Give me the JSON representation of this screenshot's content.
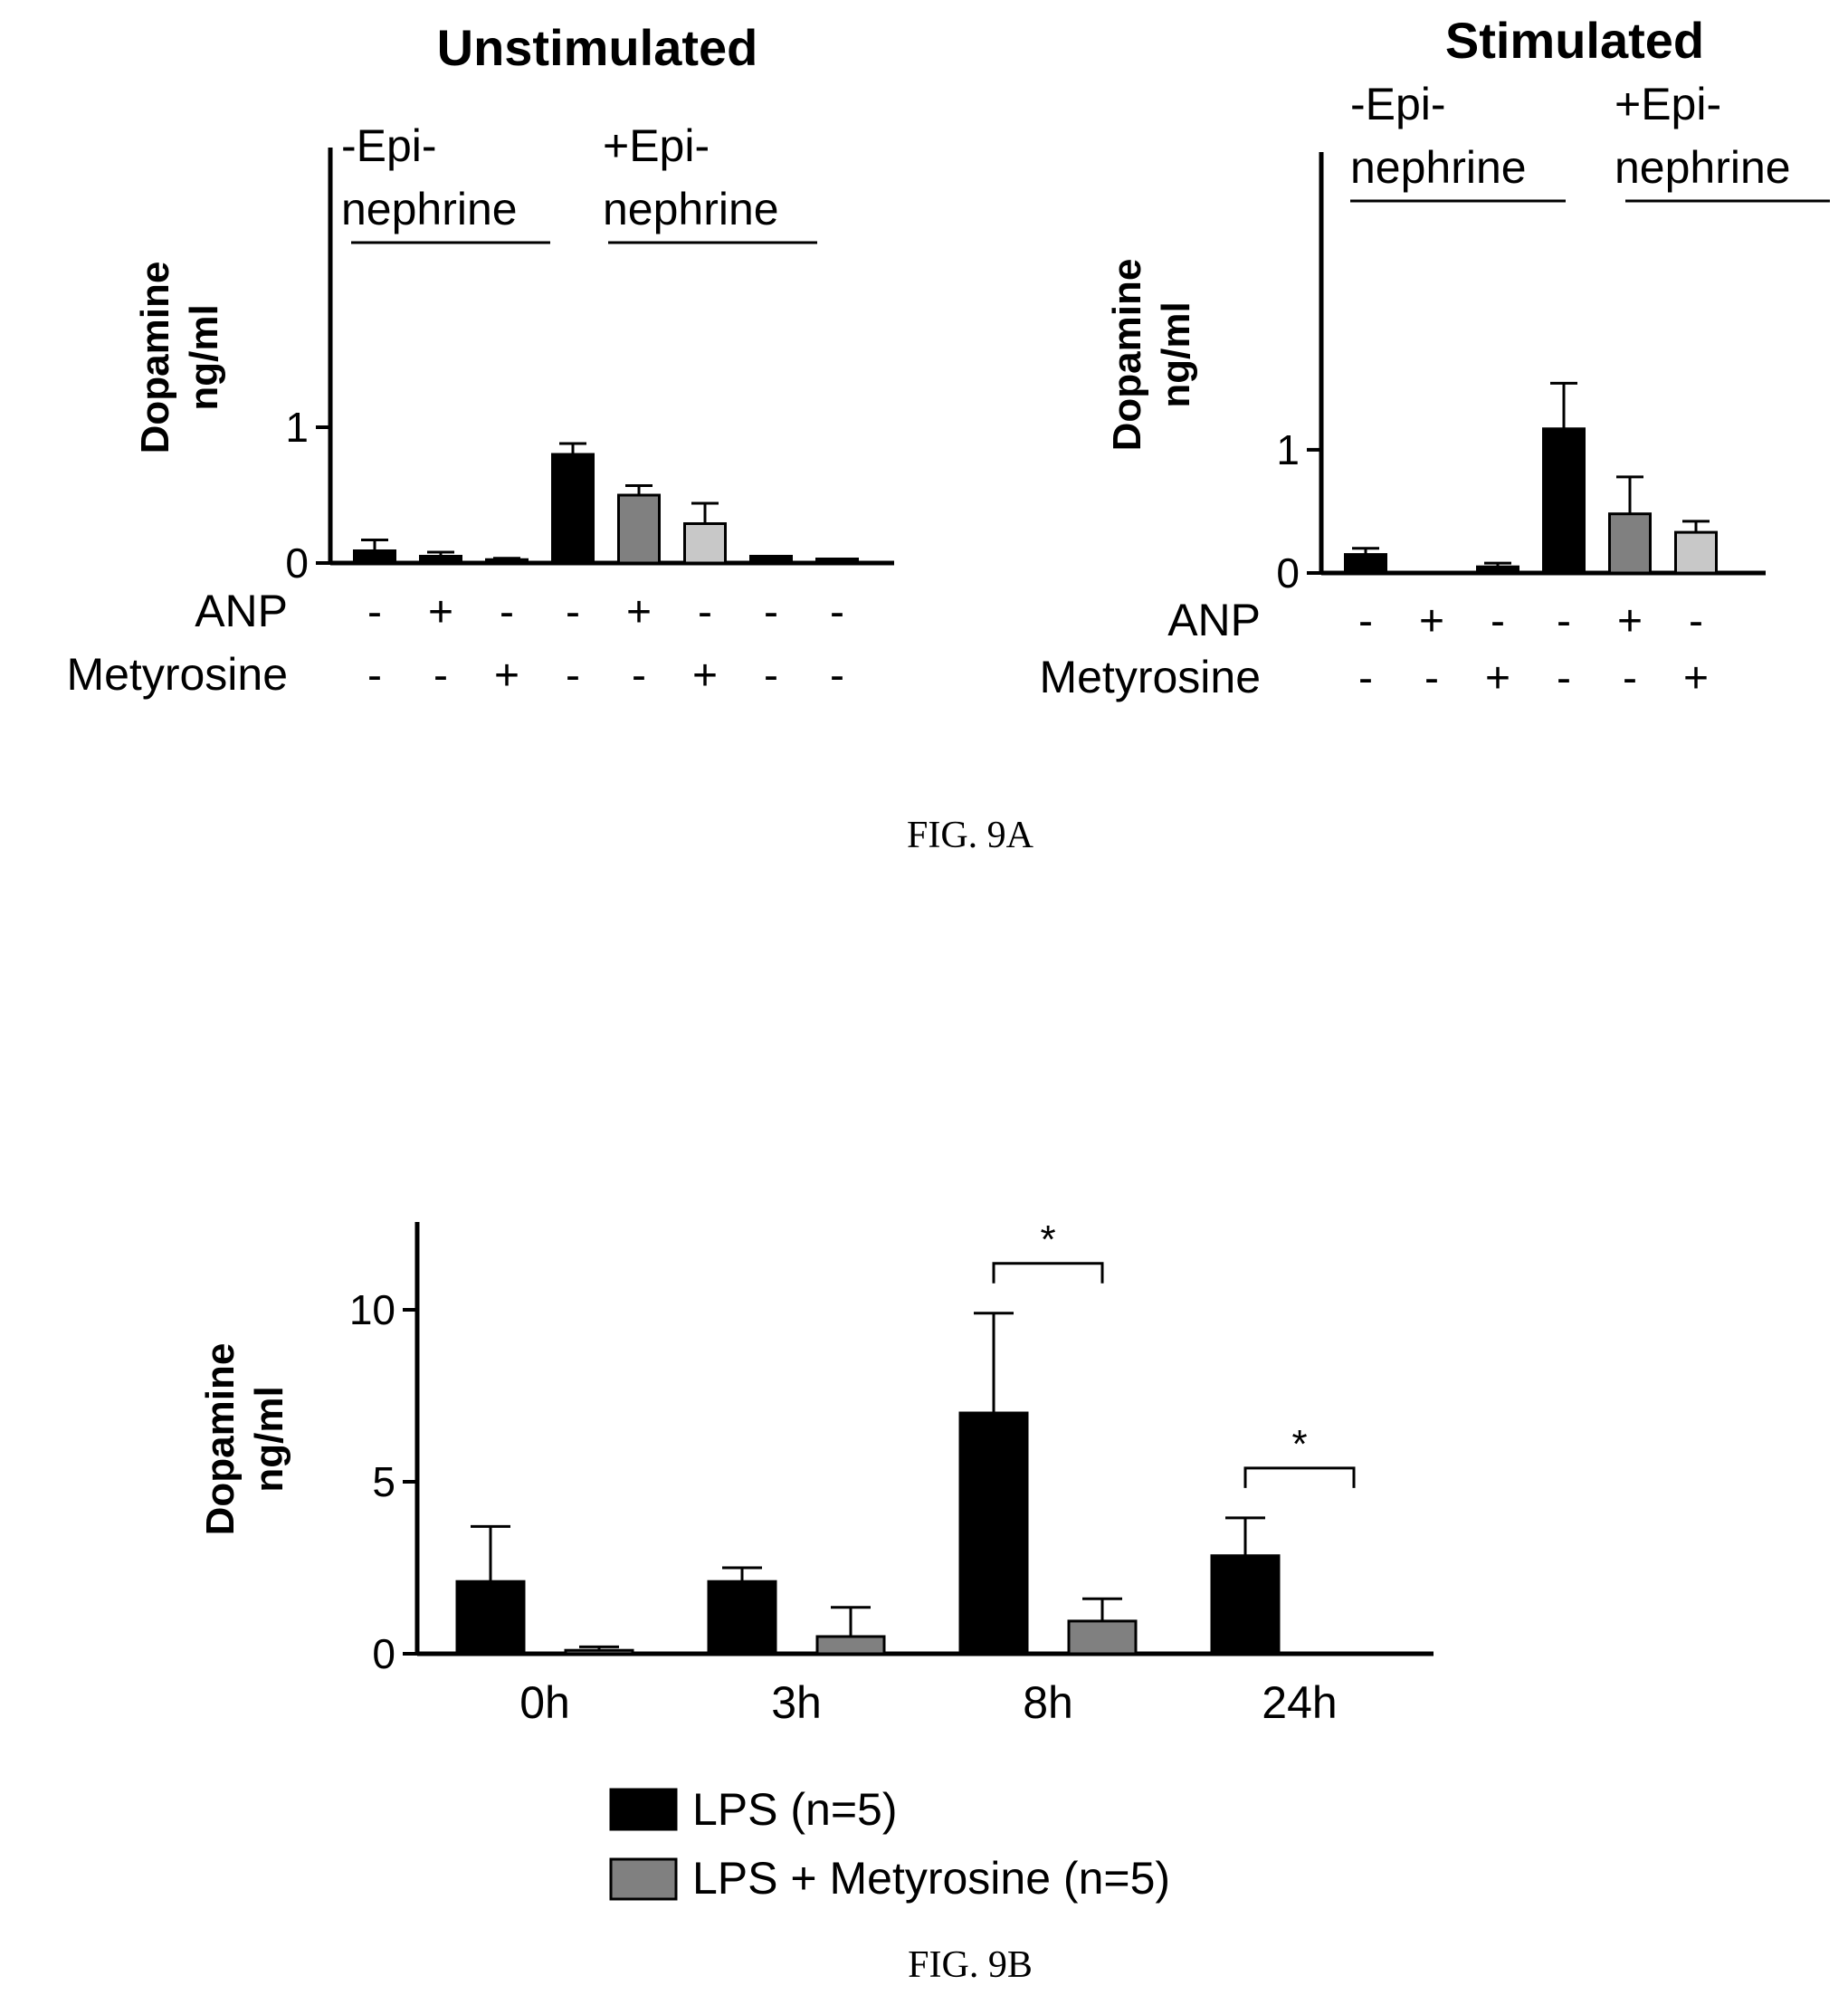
{
  "figure_a_caption": "FIG. 9A",
  "figure_b_caption": "FIG. 9B",
  "colors": {
    "black": "#000000",
    "dark_gray": "#808080",
    "light_gray": "#c8c8c8"
  },
  "chart_data": [
    {
      "type": "bar",
      "title": "Unstimulated",
      "ylabel": "Dopamine ng/ml",
      "ylabel_lines": [
        "Dopamine",
        "ng/ml"
      ],
      "ylim": [
        0,
        1.7
      ],
      "yticks": [
        0,
        1
      ],
      "row_labels": [
        "ANP",
        "Metyrosine"
      ],
      "groups": [
        {
          "label_lines": [
            "-Epi-",
            "nephrine"
          ]
        },
        {
          "label_lines": [
            "+Epi-",
            "nephrine"
          ]
        }
      ],
      "bars": [
        {
          "value": 0.09,
          "error": 0.08,
          "fill": "black",
          "anp": "-",
          "metyrosine": "-"
        },
        {
          "value": 0.05,
          "error": 0.03,
          "fill": "black",
          "anp": "+",
          "metyrosine": "-"
        },
        {
          "value": 0.025,
          "error": 0.01,
          "fill": "black",
          "anp": "-",
          "metyrosine": "+"
        },
        {
          "value": 0.8,
          "error": 0.08,
          "fill": "black",
          "anp": "-",
          "metyrosine": "-"
        },
        {
          "value": 0.5,
          "error": 0.07,
          "fill": "dark_gray",
          "anp": "+",
          "metyrosine": "-"
        },
        {
          "value": 0.29,
          "error": 0.15,
          "fill": "light_gray",
          "anp": "-",
          "metyrosine": "+"
        },
        {
          "value": 0.05,
          "error": 0.0,
          "fill": "black",
          "anp": "-",
          "metyrosine": "-"
        },
        {
          "value": 0.03,
          "error": 0.0,
          "fill": "black",
          "anp": "-",
          "metyrosine": "-"
        }
      ]
    },
    {
      "type": "bar",
      "title": "Stimulated",
      "ylabel": "Dopamine ng/ml",
      "ylabel_lines": [
        "Dopamine",
        "ng/ml"
      ],
      "ylim": [
        0,
        1.8
      ],
      "yticks": [
        0,
        1
      ],
      "row_labels": [
        "ANP",
        "Metyrosine"
      ],
      "groups": [
        {
          "label_lines": [
            "-Epi-",
            "nephrine"
          ]
        },
        {
          "label_lines": [
            "+Epi-",
            "nephrine"
          ]
        }
      ],
      "bars": [
        {
          "value": 0.15,
          "error": 0.05,
          "fill": "black",
          "anp": "-",
          "metyrosine": "-"
        },
        {
          "value": 0.0,
          "error": 0.0,
          "fill": "black",
          "anp": "+",
          "metyrosine": "-"
        },
        {
          "value": 0.05,
          "error": 0.03,
          "fill": "black",
          "anp": "-",
          "metyrosine": "+"
        },
        {
          "value": 1.17,
          "error": 0.37,
          "fill": "black",
          "anp": "-",
          "metyrosine": "-"
        },
        {
          "value": 0.48,
          "error": 0.3,
          "fill": "dark_gray",
          "anp": "+",
          "metyrosine": "-"
        },
        {
          "value": 0.33,
          "error": 0.09,
          "fill": "light_gray",
          "anp": "-",
          "metyrosine": "+"
        }
      ]
    },
    {
      "type": "bar",
      "title": "",
      "ylabel": "Dopamine ng/ml",
      "ylabel_lines": [
        "Dopamine",
        "ng/ml"
      ],
      "ylim": [
        0,
        12.5
      ],
      "yticks": [
        0,
        5,
        10
      ],
      "categories": [
        "0h",
        "3h",
        "8h",
        "24h"
      ],
      "series": [
        {
          "name": "LPS (n=5)",
          "fill": "black",
          "values": [
            2.1,
            2.1,
            7.0,
            2.85
          ],
          "errors": [
            1.6,
            0.4,
            2.9,
            1.1
          ]
        },
        {
          "name": "LPS + Metyrosine (n=5)",
          "fill": "dark_gray",
          "values": [
            0.1,
            0.5,
            0.95,
            0.0
          ],
          "errors": [
            0.1,
            0.85,
            0.65,
            0.0
          ]
        }
      ],
      "significance": [
        {
          "category": "8h",
          "marker": "*"
        },
        {
          "category": "24h",
          "marker": "*"
        }
      ],
      "legend_position": "bottom"
    }
  ]
}
